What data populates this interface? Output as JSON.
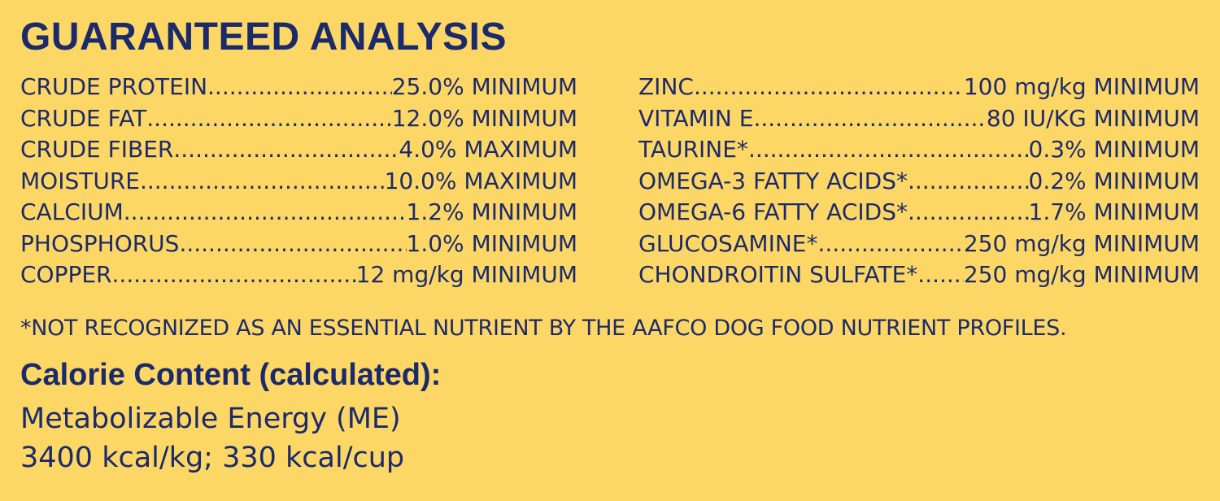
{
  "title": "GUARANTEED ANALYSIS",
  "left_column": [
    {
      "name": "CRUDE PROTEIN",
      "value": "25.0% MINIMUM"
    },
    {
      "name": "CRUDE FAT",
      "value": "12.0% MINIMUM"
    },
    {
      "name": "CRUDE FIBER",
      "value": "4.0% MAXIMUM"
    },
    {
      "name": "MOISTURE",
      "value": "10.0% MAXIMUM"
    },
    {
      "name": "CALCIUM",
      "value": "1.2% MINIMUM"
    },
    {
      "name": "PHOSPHORUS",
      "value": "1.0% MINIMUM"
    },
    {
      "name": "COPPER",
      "value": "12 mg/kg MINIMUM"
    }
  ],
  "right_column": [
    {
      "name": "ZINC",
      "value": "100 mg/kg MINIMUM"
    },
    {
      "name": "VITAMIN E",
      "value": "80 IU/KG MINIMUM"
    },
    {
      "name": "TAURINE*",
      "value": "0.3% MINIMUM"
    },
    {
      "name": "OMEGA-3 FATTY ACIDS*",
      "value": "0.2% MINIMUM"
    },
    {
      "name": "OMEGA-6 FATTY ACIDS*",
      "value": "1.7% MINIMUM"
    },
    {
      "name": "GLUCOSAMINE*",
      "value": "250 mg/kg MINIMUM"
    },
    {
      "name": "CHONDROITIN SULFATE*",
      "value": "250 mg/kg MINIMUM"
    }
  ],
  "footnote": "*NOT RECOGNIZED AS AN ESSENTIAL NUTRIENT BY THE AAFCO DOG FOOD NUTRIENT PROFILES.",
  "calorie": {
    "heading": "Calorie Content (calculated):",
    "line1": "Metabolizable Energy (ME)",
    "line2": "3400 kcal/kg; 330 kcal/cup"
  },
  "colors": {
    "background": "#FDD765",
    "text": "#1B2A6B"
  }
}
